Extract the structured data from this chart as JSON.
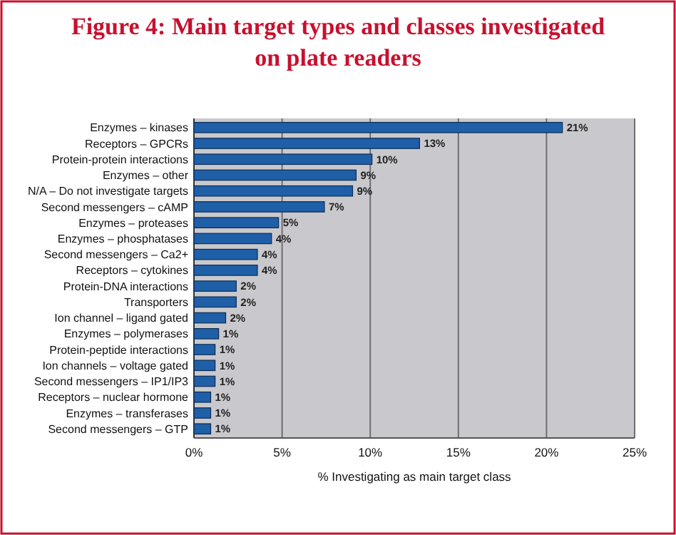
{
  "chart_data": {
    "type": "bar",
    "orientation": "horizontal",
    "title": "Figure 4: Main target types and classes investigated on plate readers",
    "xlabel": "% Investigating as main target class",
    "categories": [
      "Enzymes – kinases",
      "Receptors – GPCRs",
      "Protein-protein interactions",
      "Enzymes – other",
      "N/A – Do not investigate targets",
      "Second messengers – cAMP",
      "Enzymes – proteases",
      "Enzymes – phosphatases",
      "Second messengers – Ca2+",
      "Receptors – cytokines",
      "Protein-DNA interactions",
      "Transporters",
      "Ion channel – ligand gated",
      "Enzymes – polymerases",
      "Protein-peptide interactions",
      "Ion channels – voltage gated",
      "Second messengers – IP1/IP3",
      "Receptors – nuclear hormone",
      "Enzymes – transferases",
      "Second messengers – GTP"
    ],
    "values": [
      20.9,
      12.8,
      10.1,
      9.2,
      9.0,
      7.4,
      4.8,
      4.4,
      3.6,
      3.6,
      2.4,
      2.4,
      1.8,
      1.4,
      1.2,
      1.2,
      1.2,
      0.95,
      0.95,
      0.95
    ],
    "value_labels": [
      "21%",
      "13%",
      "10%",
      "9%",
      "9%",
      "7%",
      "5%",
      "4%",
      "4%",
      "4%",
      "2%",
      "2%",
      "2%",
      "1%",
      "1%",
      "1%",
      "1%",
      "1%",
      "1%",
      "1%"
    ],
    "color": "#1f5fa8",
    "xlim": [
      0,
      25
    ],
    "xticks": [
      {
        "value": 0,
        "label": "0%"
      },
      {
        "value": 5,
        "label": "5%"
      },
      {
        "value": 10,
        "label": "10%"
      },
      {
        "value": 15,
        "label": "15%"
      },
      {
        "value": 20,
        "label": "20%"
      },
      {
        "value": 25,
        "label": "25%"
      }
    ],
    "grid": "x"
  }
}
